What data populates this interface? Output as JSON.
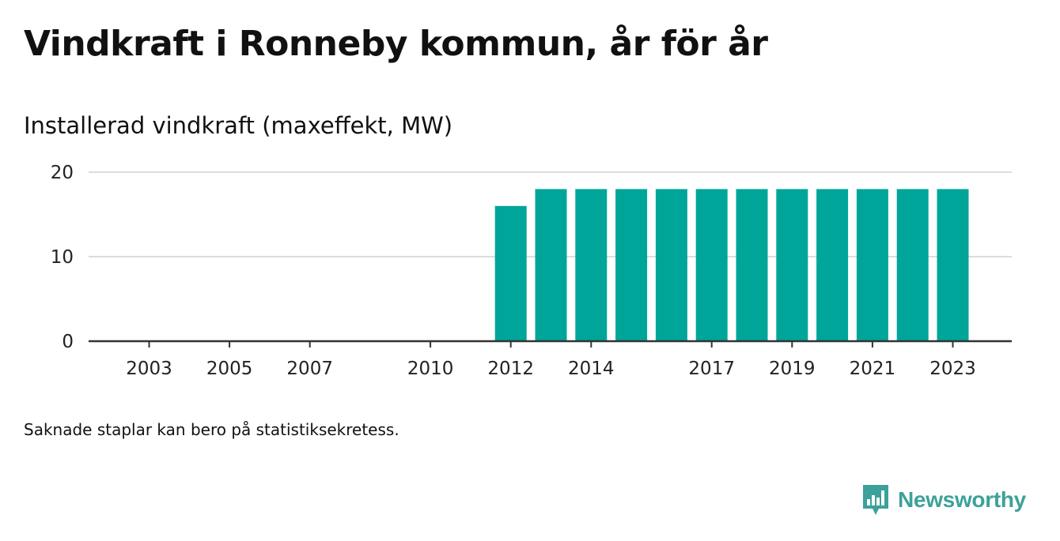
{
  "header": {
    "title": "Vindkraft i Ronneby kommun, år för år",
    "subtitle": "Installerad vindkraft (maxeffekt, MW)"
  },
  "footer": {
    "note": "Saknade staplar kan bero på statistiksekretess.",
    "brand": "Newsworthy"
  },
  "colors": {
    "bar": "#00a59a",
    "grid": "#dddddd",
    "axis": "#333333",
    "brand": "#3ca19a"
  },
  "chart_data": {
    "type": "bar",
    "x": [
      2003,
      2004,
      2005,
      2006,
      2007,
      2008,
      2009,
      2010,
      2011,
      2012,
      2013,
      2014,
      2015,
      2016,
      2017,
      2018,
      2019,
      2020,
      2021,
      2022,
      2023
    ],
    "values": [
      0,
      0,
      0,
      0,
      0,
      0,
      0,
      0,
      0,
      16,
      18,
      18,
      18,
      18,
      18,
      18,
      18,
      18,
      18,
      18,
      18
    ],
    "ylim": [
      0,
      20
    ],
    "yticks": [
      0,
      10,
      20
    ],
    "xtick_labels": [
      "2003",
      "2005",
      "2007",
      "2010",
      "2012",
      "2014",
      "2017",
      "2019",
      "2021",
      "2023"
    ],
    "grid": true,
    "ylabel": "Installerad vindkraft (maxeffekt, MW)"
  }
}
